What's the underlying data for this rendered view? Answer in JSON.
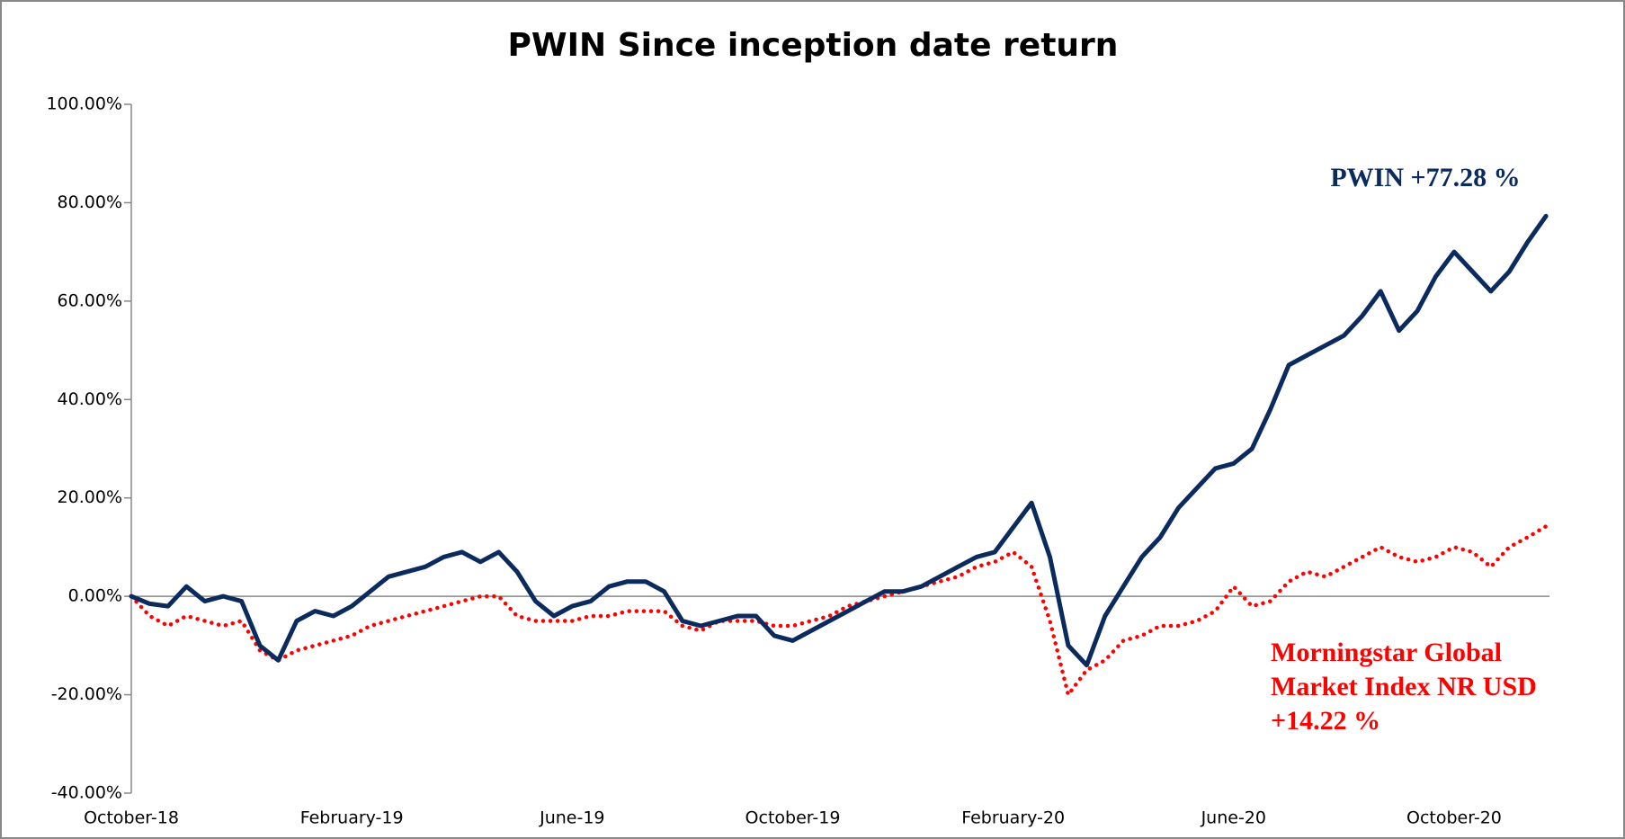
{
  "chart_data": {
    "type": "line",
    "title": "PWIN Since inception date return",
    "categories": [
      "October-18",
      null,
      null,
      null,
      null,
      null,
      null,
      null,
      null,
      null,
      null,
      null,
      "February-19",
      null,
      null,
      null,
      null,
      null,
      null,
      null,
      null,
      null,
      null,
      null,
      "June-19",
      null,
      null,
      null,
      null,
      null,
      null,
      null,
      null,
      null,
      null,
      null,
      "October-19",
      null,
      null,
      null,
      null,
      null,
      null,
      null,
      null,
      null,
      null,
      null,
      "February-20",
      null,
      null,
      null,
      null,
      null,
      null,
      null,
      null,
      null,
      null,
      null,
      "June-20",
      null,
      null,
      null,
      null,
      null,
      null,
      null,
      null,
      null,
      null,
      null,
      "October-20",
      null,
      null,
      null,
      null,
      null
    ],
    "series": [
      {
        "name": "PWIN",
        "color": "#0b2a5e",
        "line_style": "solid",
        "values": [
          0,
          -1.5,
          -2,
          2,
          -1,
          0,
          -1,
          -10,
          -13,
          -5,
          -3,
          -4,
          -2,
          1,
          4,
          5,
          6,
          8,
          9,
          7,
          9,
          5,
          -1,
          -4,
          -2,
          -1,
          2,
          3,
          3,
          1,
          -5,
          -6,
          -5,
          -4,
          -4,
          -8,
          -9,
          -7,
          -5,
          -3,
          -1,
          1,
          1,
          2,
          4,
          6,
          8,
          9,
          14,
          19,
          8,
          -10,
          -14,
          -4,
          2,
          8,
          12,
          18,
          22,
          26,
          27,
          30,
          38,
          47,
          49,
          51,
          53,
          57,
          62,
          54,
          58,
          65,
          70,
          66,
          62,
          66,
          72,
          77.28
        ]
      },
      {
        "name": "Morningstar Global Market Index NR USD",
        "color": "#ff0000",
        "line_style": "dotted",
        "values": [
          0,
          -4,
          -6,
          -4,
          -5,
          -6,
          -5,
          -11,
          -13,
          -11,
          -10,
          -9,
          -8,
          -6,
          -5,
          -4,
          -3,
          -2,
          -1,
          0,
          0,
          -4,
          -5,
          -5,
          -5,
          -4,
          -4,
          -3,
          -3,
          -3,
          -6,
          -7,
          -5,
          -5,
          -5,
          -6,
          -6,
          -5,
          -4,
          -2,
          -1,
          0,
          1,
          2,
          3,
          4,
          6,
          7,
          9,
          6,
          -5,
          -20,
          -15,
          -13,
          -9,
          -8,
          -6,
          -6,
          -5,
          -3,
          2,
          -2,
          -1,
          3,
          5,
          4,
          6,
          8,
          10,
          8,
          7,
          8,
          10,
          9,
          6,
          10,
          12,
          14.22
        ]
      }
    ],
    "ylim": [
      -40,
      100
    ],
    "yticks": [
      {
        "value": -40,
        "label": "-40.00%"
      },
      {
        "value": -20,
        "label": "-20.00%"
      },
      {
        "value": 0,
        "label": "0.00%"
      },
      {
        "value": 20,
        "label": "20.00%"
      },
      {
        "value": 40,
        "label": "40.00%"
      },
      {
        "value": 60,
        "label": "60.00%"
      },
      {
        "value": 80,
        "label": "80.00%"
      },
      {
        "value": 100,
        "label": "100.00%"
      }
    ],
    "annotations": [
      {
        "lines": [
          "PWIN +77.28 %"
        ],
        "color": "#0b2a5e"
      },
      {
        "lines": [
          "Morningstar Global",
          "Market Index  NR USD",
          "+14.22 %"
        ],
        "color": "#ff0000"
      }
    ],
    "grid": false
  }
}
